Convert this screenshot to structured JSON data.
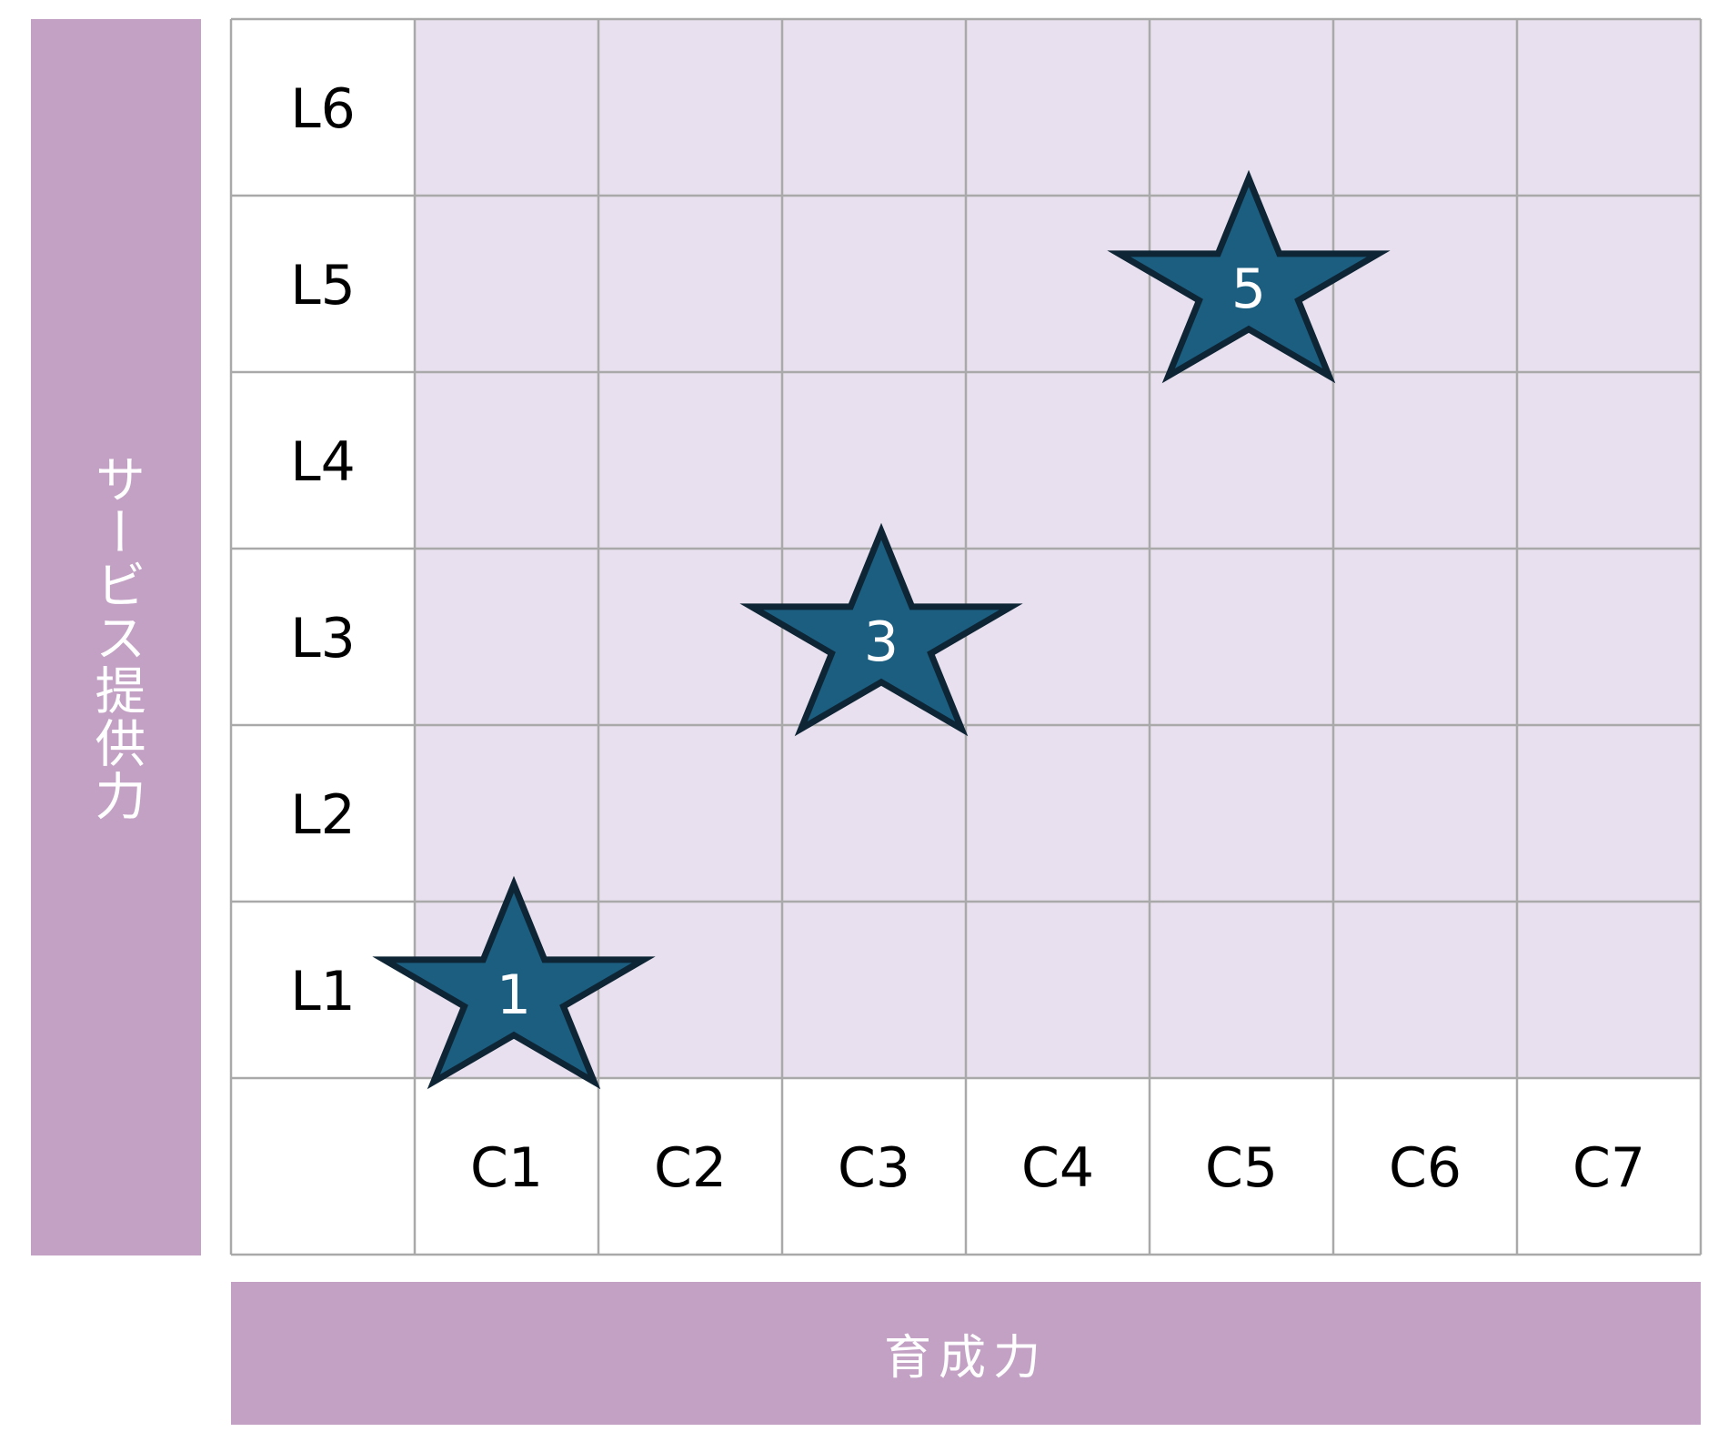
{
  "chart_data": {
    "type": "scatter",
    "title": "",
    "xlabel": "育成力",
    "ylabel": "サービス提供力",
    "x_categories": [
      "C1",
      "C2",
      "C3",
      "C4",
      "C5",
      "C6",
      "C7"
    ],
    "y_categories": [
      "L1",
      "L2",
      "L3",
      "L4",
      "L5",
      "L6"
    ],
    "grid": true,
    "marker": "star",
    "points": [
      {
        "x": "C1",
        "y": "L1",
        "label": "1"
      },
      {
        "x": "C3",
        "y": "L3",
        "label": "3"
      },
      {
        "x": "C5",
        "y": "L5",
        "label": "5"
      }
    ],
    "colors": {
      "axis_band": "#c3a1c4",
      "cell_fill": "#e8e0ee",
      "grid_line": "#a9a9a9",
      "star_fill": "#1b5e80",
      "star_stroke": "#0e2535"
    }
  }
}
